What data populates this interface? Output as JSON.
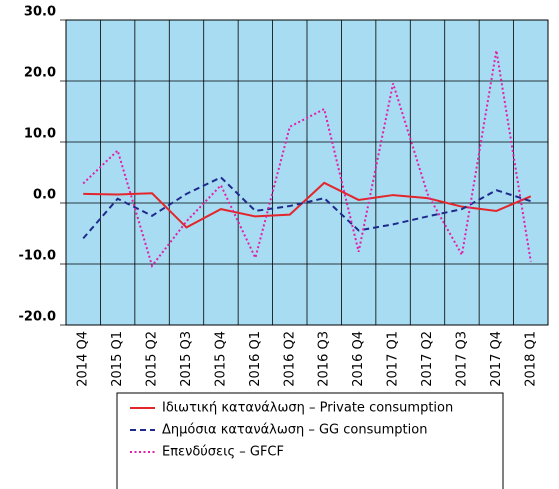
{
  "chart_data": {
    "type": "line",
    "categories": [
      "2014 Q4",
      "2015 Q1",
      "2015 Q2",
      "2015 Q3",
      "2015 Q4",
      "2016 Q1",
      "2016 Q2",
      "2016 Q3",
      "2016 Q4",
      "2017 Q1",
      "2017 Q2",
      "2017 Q3",
      "2017 Q4",
      "2018 Q1"
    ],
    "series": [
      {
        "name": "Ιδιωτική κατανάλωση – Private consumption",
        "color": "#e3262b",
        "dash": "solid",
        "values": [
          1.5,
          1.4,
          1.6,
          -4.0,
          -1.0,
          -2.2,
          -1.9,
          3.3,
          0.5,
          1.3,
          0.8,
          -0.6,
          -1.3,
          1.1
        ]
      },
      {
        "name": "Δημόσια κατανάλωση – GG consumption",
        "color": "#1f2a8c",
        "dash": "dashed",
        "values": [
          -5.8,
          0.7,
          -2.1,
          1.5,
          4.2,
          -1.3,
          -0.5,
          0.8,
          -4.5,
          -3.5,
          -2.2,
          -1.0,
          2.1,
          0.3
        ]
      },
      {
        "name": "Επενδύσεις – GFCF",
        "color": "#e020a8",
        "dash": "dotted",
        "values": [
          3.2,
          8.6,
          -10.3,
          -3.0,
          2.9,
          -9.0,
          12.5,
          15.4,
          -8.0,
          19.6,
          1.5,
          -8.5,
          25.0,
          -9.6
        ]
      }
    ],
    "ylim": [
      -20,
      30
    ],
    "yticks": [
      {
        "value": -20,
        "label": "-20.0"
      },
      {
        "value": -10,
        "label": "-10.0"
      },
      {
        "value": 0,
        "label": "0.0"
      },
      {
        "value": 10,
        "label": "10.0"
      },
      {
        "value": 20,
        "label": "20.0"
      },
      {
        "value": 30,
        "label": "30.0"
      }
    ],
    "grid": true,
    "plot_background": "#a8dcf2"
  }
}
